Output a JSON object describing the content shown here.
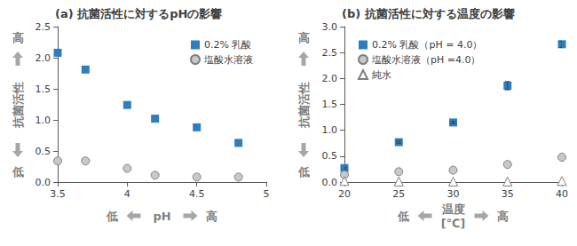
{
  "chart_data": [
    {
      "type": "scatter",
      "title": "(a) 抗菌活性に対するpHの影響",
      "xlabel": "pH",
      "ylabel": "抗菌活性",
      "annotations": {
        "x_low": "低",
        "x_high": "高",
        "y_low": "低",
        "y_high": "高"
      },
      "xlim": [
        3.5,
        5
      ],
      "xticks": [
        3.5,
        4,
        4.5,
        5
      ],
      "ylim": [
        0,
        2.5
      ],
      "yticks": [
        {
          "value": 0,
          "label": "0.0"
        },
        0.5,
        {
          "value": 1,
          "label": "1.0"
        },
        1.5,
        {
          "value": 2,
          "label": "2.0"
        },
        2.5
      ],
      "grid": false,
      "legend": "upper right",
      "series": [
        {
          "name": "0.2% 乳酸",
          "color": "#2e7ebf",
          "marker": "square",
          "x": [
            3.5,
            3.7,
            4.0,
            4.2,
            4.5,
            4.8
          ],
          "values": [
            2.08,
            1.81,
            1.24,
            1.02,
            0.88,
            0.63
          ]
        },
        {
          "name": "塩酸水溶液",
          "color": "#c8c8c8",
          "marker": "circle",
          "x": [
            3.5,
            3.7,
            4.0,
            4.2,
            4.5,
            4.8
          ],
          "values": [
            0.34,
            0.34,
            0.22,
            0.11,
            0.08,
            0.08
          ]
        }
      ]
    },
    {
      "type": "scatter",
      "title": "(b) 抗菌活性に対する温度の影響",
      "xlabel": "温度\n[℃]",
      "ylabel": "抗菌活性",
      "annotations": {
        "x_low": "低",
        "x_high": "高",
        "y_low": "低",
        "y_high": "高"
      },
      "xlim": [
        20,
        40
      ],
      "xticks": [
        20,
        25,
        30,
        35,
        40
      ],
      "ylim": [
        0,
        3
      ],
      "yticks": [
        {
          "value": 0,
          "label": "0.0"
        },
        0.5,
        {
          "value": 1,
          "label": "1.0"
        },
        1.5,
        {
          "value": 2,
          "label": "2.0"
        },
        2.5,
        {
          "value": 3,
          "label": "3.0"
        }
      ],
      "grid": false,
      "legend": "upper left",
      "series": [
        {
          "name": "0.2% 乳酸（pH = 4.0）",
          "color": "#2e7ebf",
          "marker": "square",
          "x": [
            20,
            25,
            30,
            35,
            40
          ],
          "values": [
            0.27,
            0.77,
            1.15,
            1.86,
            2.66
          ],
          "errors": [
            0.02,
            0.02,
            0.02,
            0.08,
            0.06
          ]
        },
        {
          "name": "塩酸水溶液（pH =4.0）",
          "color": "#c8c8c8",
          "marker": "circle",
          "x": [
            20,
            25,
            30,
            35,
            40
          ],
          "values": [
            0.14,
            0.2,
            0.23,
            0.34,
            0.48
          ]
        },
        {
          "name": "純水",
          "color": "#ffffff",
          "marker": "triangle",
          "x": [
            20,
            25,
            30,
            35,
            40
          ],
          "values": [
            0.02,
            0.01,
            0.01,
            0.01,
            0.02
          ]
        }
      ]
    }
  ]
}
